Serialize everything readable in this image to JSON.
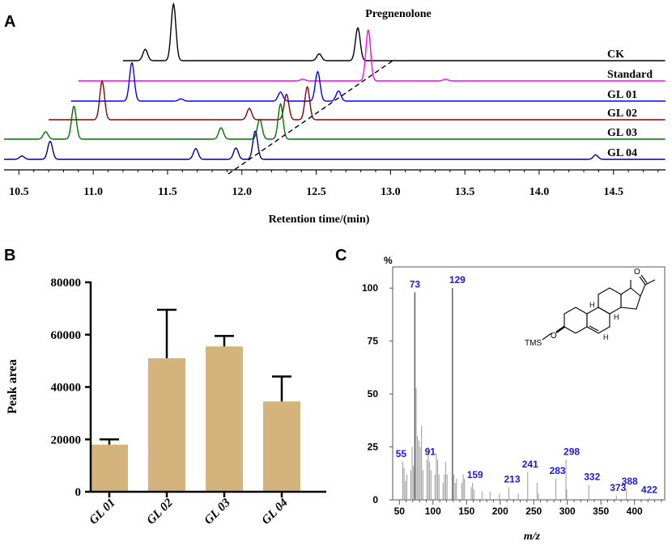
{
  "panels": {
    "a": "A",
    "b": "B",
    "c": "C"
  },
  "chart_data": [
    {
      "type": "line",
      "panel": "A",
      "title": "",
      "annotation": "Pregnenolone",
      "xlabel": "Retention time/(min)",
      "ylabel": "",
      "xlim": [
        10.4,
        14.85
      ],
      "xticks": [
        "10.5",
        "11.0",
        "11.5",
        "12.0",
        "12.5",
        "13.0",
        "13.5",
        "14.0",
        "14.5"
      ],
      "series": [
        {
          "name": "CK",
          "color": "#000000",
          "x_start": 11.2,
          "peaks": [
            [
              11.35,
              0.2
            ],
            [
              11.54,
              1.0
            ],
            [
              12.52,
              0.12
            ],
            [
              12.78,
              0.58
            ]
          ]
        },
        {
          "name": "Standard",
          "color": "#ff00ff",
          "x_start": 10.9,
          "peaks": [
            [
              12.41,
              0.03
            ],
            [
              12.85,
              0.9
            ],
            [
              13.37,
              0.03
            ]
          ]
        },
        {
          "name": "GL 01",
          "color": "#0000ff",
          "x_start": 10.85,
          "peaks": [
            [
              11.26,
              0.68
            ],
            [
              11.59,
              0.04
            ],
            [
              12.26,
              0.16
            ],
            [
              12.51,
              0.52
            ],
            [
              12.65,
              0.18
            ]
          ]
        },
        {
          "name": "GL 02",
          "color": "#8b0000",
          "x_start": 10.7,
          "peaks": [
            [
              11.06,
              0.68
            ],
            [
              12.05,
              0.2
            ],
            [
              12.3,
              0.45
            ],
            [
              12.44,
              0.58
            ]
          ]
        },
        {
          "name": "GL 03",
          "color": "#007000",
          "x_start": 10.4,
          "peaks": [
            [
              10.68,
              0.13
            ],
            [
              10.87,
              0.58
            ],
            [
              11.86,
              0.2
            ],
            [
              12.12,
              0.35
            ],
            [
              12.26,
              0.62
            ]
          ]
        },
        {
          "name": "GL 04",
          "color": "#000080",
          "x_start": 10.4,
          "peaks": [
            [
              10.52,
              0.06
            ],
            [
              10.71,
              0.32
            ],
            [
              11.69,
              0.19
            ],
            [
              11.96,
              0.2
            ],
            [
              12.09,
              0.5
            ],
            [
              14.38,
              0.08
            ]
          ]
        }
      ]
    },
    {
      "type": "bar",
      "panel": "B",
      "title": "",
      "xlabel": "",
      "ylabel": "Peak area",
      "categories": [
        "GL 01",
        "GL 02",
        "GL 03",
        "GL 04"
      ],
      "values": [
        18000,
        51000,
        55500,
        34500
      ],
      "error_upper": [
        20000,
        69500,
        59500,
        44000
      ],
      "ylim": [
        0,
        80000
      ],
      "yticks": [
        "0",
        "20000",
        "40000",
        "60000",
        "80000"
      ],
      "color": "#d4b47c"
    },
    {
      "type": "bar",
      "panel": "C",
      "title": "",
      "xlabel": "m/z",
      "ylabel": "%",
      "xlim": [
        40,
        445
      ],
      "ylim": [
        0,
        110
      ],
      "xticks": [
        "50",
        "100",
        "150",
        "200",
        "250",
        "300",
        "350",
        "400"
      ],
      "yticks": [
        "0",
        "25",
        "50",
        "75",
        "100"
      ],
      "peaks": [
        [
          55,
          18
        ],
        [
          57,
          15
        ],
        [
          59,
          9
        ],
        [
          61,
          12
        ],
        [
          67,
          14
        ],
        [
          69,
          25
        ],
        [
          71,
          16
        ],
        [
          73,
          98
        ],
        [
          75,
          53
        ],
        [
          77,
          30
        ],
        [
          79,
          28
        ],
        [
          81,
          25
        ],
        [
          83,
          35
        ],
        [
          85,
          14
        ],
        [
          91,
          19
        ],
        [
          93,
          25
        ],
        [
          95,
          18
        ],
        [
          97,
          14
        ],
        [
          103,
          12
        ],
        [
          105,
          22
        ],
        [
          107,
          19
        ],
        [
          109,
          12
        ],
        [
          115,
          8
        ],
        [
          117,
          12
        ],
        [
          119,
          18
        ],
        [
          121,
          12
        ],
        [
          129,
          100
        ],
        [
          131,
          12
        ],
        [
          133,
          8
        ],
        [
          135,
          10
        ],
        [
          143,
          8
        ],
        [
          145,
          12
        ],
        [
          147,
          10
        ],
        [
          157,
          6
        ],
        [
          159,
          8
        ],
        [
          161,
          5
        ],
        [
          173,
          4
        ],
        [
          185,
          4
        ],
        [
          199,
          3
        ],
        [
          213,
          6
        ],
        [
          227,
          3
        ],
        [
          241,
          13
        ],
        [
          255,
          8
        ],
        [
          257,
          3
        ],
        [
          283,
          10
        ],
        [
          298,
          19
        ],
        [
          299,
          5
        ],
        [
          332,
          7
        ],
        [
          373,
          2
        ],
        [
          388,
          5
        ],
        [
          422,
          1
        ]
      ],
      "labels": [
        "55",
        "73",
        "91",
        "129",
        "159",
        "213",
        "241",
        "283",
        "298",
        "332",
        "373",
        "388",
        "422"
      ],
      "structure_labels": {
        "tms": "TMS",
        "oxygen": "O",
        "h1": "H",
        "h2": "H",
        "h3": "H",
        "ketone_o": "O"
      }
    }
  ]
}
